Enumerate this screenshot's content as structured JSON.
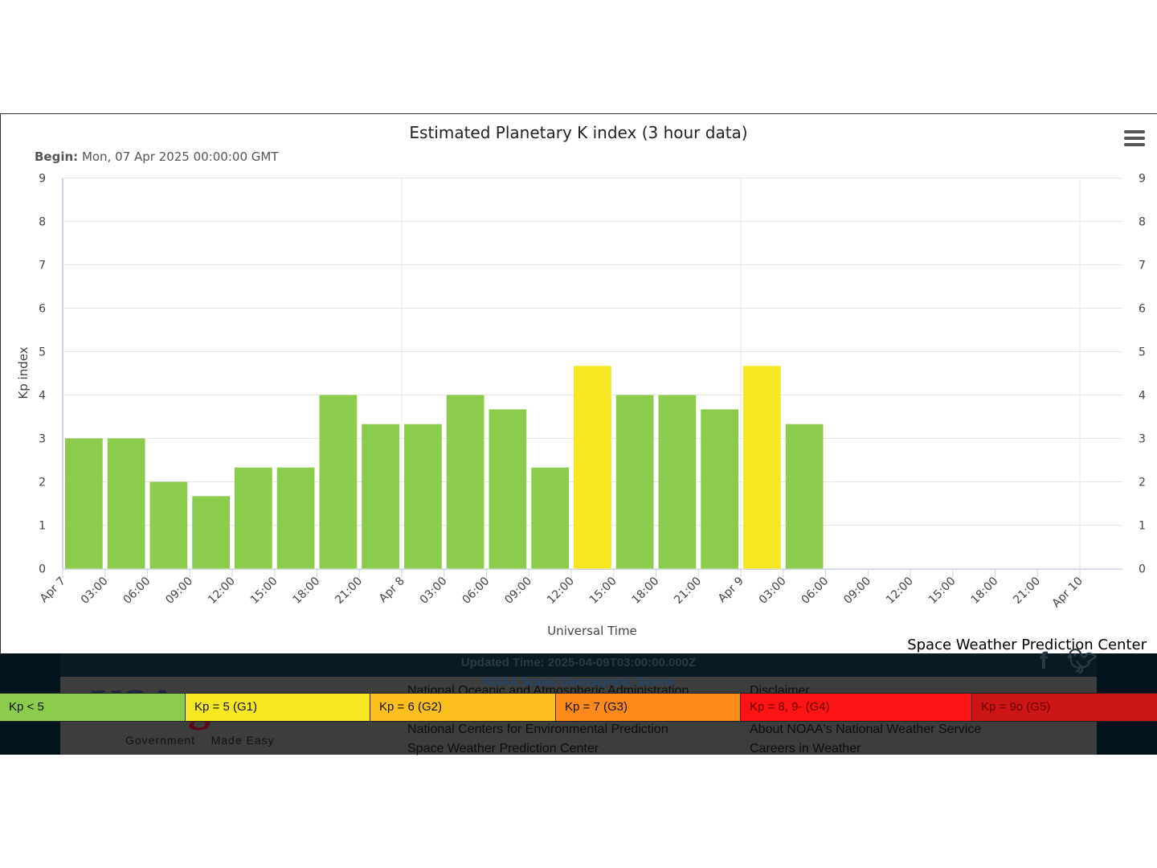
{
  "menu": {
    "icon": "hamburger-menu-icon"
  },
  "chart_data": {
    "type": "bar",
    "title": "Estimated Planetary K index (3 hour data)",
    "subtitle_label": "Begin:",
    "subtitle_value": "Mon, 07 Apr 2025 00:00:00 GMT",
    "xlabel": "Universal Time",
    "ylabel": "Kp index",
    "ylim": [
      0,
      9
    ],
    "y_ticks": [
      "0",
      "1",
      "2",
      "3",
      "4",
      "5",
      "6",
      "7",
      "8",
      "9"
    ],
    "grid": true,
    "credit": "Space Weather Prediction Center",
    "x_tick_labels": [
      "Apr 7",
      "03:00",
      "06:00",
      "09:00",
      "12:00",
      "15:00",
      "18:00",
      "21:00",
      "Apr 8",
      "03:00",
      "06:00",
      "09:00",
      "12:00",
      "15:00",
      "18:00",
      "21:00",
      "Apr 9",
      "03:00",
      "06:00",
      "09:00",
      "12:00",
      "15:00",
      "18:00",
      "21:00",
      "Apr 10"
    ],
    "values": [
      3.0,
      3.0,
      2.0,
      1.67,
      2.33,
      2.33,
      4.0,
      3.33,
      3.33,
      4.0,
      3.67,
      2.33,
      4.67,
      4.0,
      4.0,
      3.67,
      4.67,
      3.33
    ],
    "colors": [
      "#8ccc4c",
      "#8ccc4c",
      "#8ccc4c",
      "#8ccc4c",
      "#8ccc4c",
      "#8ccc4c",
      "#8ccc4c",
      "#8ccc4c",
      "#8ccc4c",
      "#8ccc4c",
      "#8ccc4c",
      "#8ccc4c",
      "#f5e822",
      "#8ccc4c",
      "#8ccc4c",
      "#8ccc4c",
      "#f5e822",
      "#8ccc4c"
    ]
  },
  "legend": [
    {
      "label": "Kp < 5",
      "color": "#8ccc4c",
      "text_color": "#111111"
    },
    {
      "label": "Kp = 5 (G1)",
      "color": "#f5e822",
      "text_color": "#111111"
    },
    {
      "label": "Kp = 6 (G2)",
      "color": "#fcbf1e",
      "text_color": "#111111"
    },
    {
      "label": "Kp = 7 (G3)",
      "color": "#fb8a1b",
      "text_color": "#111111"
    },
    {
      "label": "Kp = 8, 9- (G4)",
      "color": "#fc1414",
      "text_color": "#6a0000"
    },
    {
      "label": "Kp = 9o (G5)",
      "color": "#cc1515",
      "text_color": "#6a0000"
    }
  ],
  "footer": {
    "updated_time": "Updated Time: 2025-04-09T03:00:00.000Z",
    "noaa_scales": "NOAA Scales Geomagnetic Storms",
    "links_left": [
      "National Oceanic and Atmospheric Administration",
      "National Centers for Environmental Prediction",
      "Space Weather Prediction Center"
    ],
    "links_right": [
      "Disclaimer",
      "About NOAA's National Weather Service",
      "Careers in Weather"
    ],
    "usa_logo_main": "USA",
    "usa_logo_gov": ".gov",
    "usa_logo_tag": "Government    Made Easy",
    "social_icons": [
      "facebook-icon",
      "twitter-icon"
    ]
  }
}
